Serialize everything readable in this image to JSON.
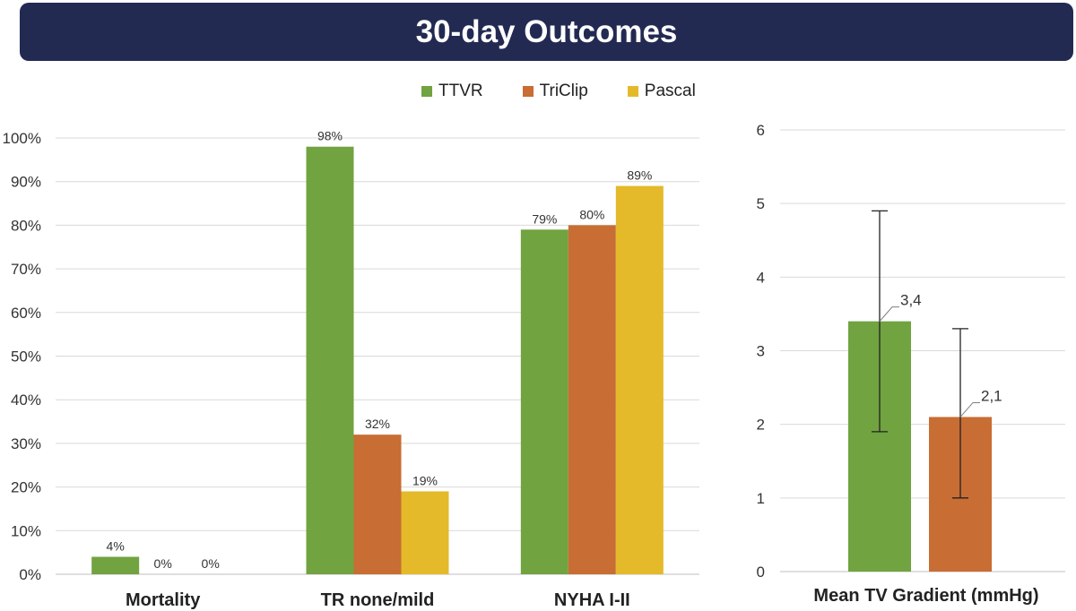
{
  "title": "30-day Outcomes",
  "legend": [
    {
      "label": "TTVR",
      "color": "#71a340"
    },
    {
      "label": "TriClip",
      "color": "#c86d33"
    },
    {
      "label": "Pascal",
      "color": "#e4ba2b"
    }
  ],
  "chart_data": [
    {
      "type": "bar",
      "categories": [
        "Mortality",
        "TR none/mild",
        "NYHA I-II"
      ],
      "series": [
        {
          "name": "TTVR",
          "color": "#71a340",
          "values": [
            4,
            98,
            79
          ],
          "labels": [
            "4%",
            "98%",
            "79%"
          ]
        },
        {
          "name": "TriClip",
          "color": "#c86d33",
          "values": [
            0,
            32,
            80
          ],
          "labels": [
            "0%",
            "32%",
            "80%"
          ]
        },
        {
          "name": "Pascal",
          "color": "#e4ba2b",
          "values": [
            0,
            19,
            89
          ],
          "labels": [
            "0%",
            "19%",
            "89%"
          ]
        }
      ],
      "ylim": [
        0,
        100
      ],
      "yticks": [
        "0%",
        "10%",
        "20%",
        "30%",
        "40%",
        "50%",
        "60%",
        "70%",
        "80%",
        "90%",
        "100%"
      ],
      "grid": true
    },
    {
      "type": "bar",
      "categories": [
        "Mean TV Gradient (mmHg)"
      ],
      "series": [
        {
          "name": "TTVR",
          "color": "#71a340",
          "value": 3.4,
          "label": "3,4",
          "error": [
            1.9,
            4.9
          ]
        },
        {
          "name": "TriClip",
          "color": "#c86d33",
          "value": 2.1,
          "label": "2,1",
          "error": [
            1.0,
            3.3
          ]
        }
      ],
      "ylim": [
        0,
        6
      ],
      "yticks": [
        "0",
        "1",
        "2",
        "3",
        "4",
        "5",
        "6"
      ],
      "grid": true
    }
  ]
}
